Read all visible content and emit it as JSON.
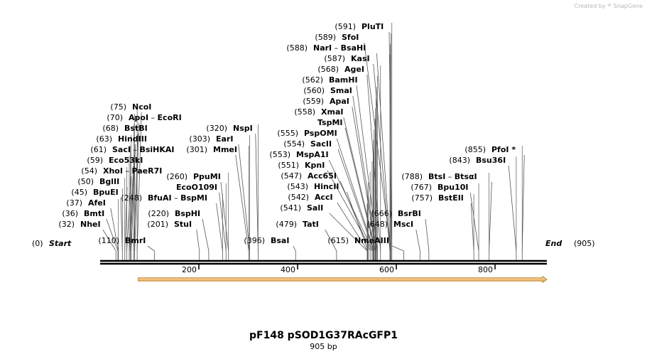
{
  "credit": {
    "prefix": "Created by",
    "brand": "SnapGene"
  },
  "plasmid": {
    "name": "pF148 pSOD1G37RAcGFP1",
    "size_label": "905 bp",
    "length": 905
  },
  "colors": {
    "feature_fill": "#f3c079",
    "feature_stroke": "#b07a1e",
    "line": "#000000",
    "leader": "#555555"
  },
  "axis_ticks": [
    200,
    400,
    600,
    800
  ],
  "ends": {
    "start": {
      "pos": "(0)",
      "name": "Start"
    },
    "end": {
      "pos": "(905)",
      "name": "End"
    }
  },
  "feature": {
    "start": 77,
    "end": 905,
    "direction": "forward"
  },
  "sites": [
    {
      "side": "L",
      "pos": "(32)",
      "names": [
        "NheI"
      ],
      "at": 32,
      "cut": 32
    },
    {
      "side": "L",
      "pos": "(36)",
      "names": [
        "BmtI"
      ],
      "at": 36,
      "cut": 36
    },
    {
      "side": "L",
      "pos": "(37)",
      "names": [
        "AfeI"
      ],
      "at": 37,
      "cut": 37
    },
    {
      "side": "L",
      "pos": "(45)",
      "names": [
        "BpuEI"
      ],
      "at": 45,
      "cut": 45
    },
    {
      "side": "L",
      "pos": "(50)",
      "names": [
        "BglII"
      ],
      "at": 50,
      "cut": 50
    },
    {
      "side": "L",
      "pos": "(54)",
      "names": [
        "XhoI",
        "PaeR7I"
      ],
      "at": 54,
      "cut": 54
    },
    {
      "side": "L",
      "pos": "(59)",
      "names": [
        "Eco53kI"
      ],
      "at": 59,
      "cut": 59
    },
    {
      "side": "L",
      "pos": "(61)",
      "names": [
        "SacI",
        "BsiHKAI"
      ],
      "at": 61,
      "cut": 61
    },
    {
      "side": "L",
      "pos": "(63)",
      "names": [
        "HindIII"
      ],
      "at": 63,
      "cut": 63
    },
    {
      "side": "L",
      "pos": "(68)",
      "names": [
        "BstBI"
      ],
      "at": 68,
      "cut": 68
    },
    {
      "side": "L",
      "pos": "(70)",
      "names": [
        "ApoI",
        "EcoRI"
      ],
      "at": 70,
      "cut": 70
    },
    {
      "side": "L",
      "pos": "(75)",
      "names": [
        "NcoI"
      ],
      "at": 75,
      "cut": 75
    },
    {
      "side": "L",
      "pos": "(110)",
      "names": [
        "BmrI"
      ],
      "at": 110,
      "cut": 110
    },
    {
      "side": "L",
      "pos": "(201)",
      "names": [
        "StuI"
      ],
      "at": 201,
      "cut": 201
    },
    {
      "side": "L",
      "pos": "(220)",
      "names": [
        "BspHI"
      ],
      "at": 220,
      "cut": 220
    },
    {
      "side": "L",
      "pos": "(248)",
      "names": [
        "BfuAI",
        "BspMI"
      ],
      "at": 248,
      "cut": 248
    },
    {
      "side": "L",
      "pos": "",
      "names": [
        "EcoO109I"
      ],
      "at": 255,
      "cut": 255
    },
    {
      "side": "L",
      "pos": "(260)",
      "names": [
        "PpuMI"
      ],
      "at": 260,
      "cut": 260
    },
    {
      "side": "L",
      "pos": "(301)",
      "names": [
        "MmeI"
      ],
      "at": 301,
      "cut": 301
    },
    {
      "side": "L",
      "pos": "(303)",
      "names": [
        "EarI"
      ],
      "at": 303,
      "cut": 303
    },
    {
      "side": "L",
      "pos": "(320)",
      "names": [
        "NspI"
      ],
      "at": 320,
      "cut": 320
    },
    {
      "side": "L",
      "pos": "(396)",
      "names": [
        "BsaI"
      ],
      "at": 396,
      "cut": 396
    },
    {
      "side": "L",
      "pos": "(479)",
      "names": [
        "TatI"
      ],
      "at": 479,
      "cut": 479
    },
    {
      "side": "L",
      "pos": "(541)",
      "names": [
        "SalI"
      ],
      "at": 541,
      "cut": 541
    },
    {
      "side": "L",
      "pos": "(542)",
      "names": [
        "AccI"
      ],
      "at": 542,
      "cut": 542
    },
    {
      "side": "L",
      "pos": "(543)",
      "names": [
        "HincII"
      ],
      "at": 543,
      "cut": 543
    },
    {
      "side": "L",
      "pos": "(547)",
      "names": [
        "Acc65I"
      ],
      "at": 547,
      "cut": 547
    },
    {
      "side": "L",
      "pos": "(551)",
      "names": [
        "KpnI"
      ],
      "at": 551,
      "cut": 551
    },
    {
      "side": "L",
      "pos": "(553)",
      "names": [
        "MspA1I"
      ],
      "at": 553,
      "cut": 553
    },
    {
      "side": "L",
      "pos": "(554)",
      "names": [
        "SacII"
      ],
      "at": 554,
      "cut": 554
    },
    {
      "side": "L",
      "pos": "(555)",
      "names": [
        "PspOMI"
      ],
      "at": 555,
      "cut": 555
    },
    {
      "side": "L",
      "pos": "",
      "names": [
        "TspMI"
      ],
      "at": 557,
      "cut": 557
    },
    {
      "side": "L",
      "pos": "(558)",
      "names": [
        "XmaI"
      ],
      "at": 558,
      "cut": 558
    },
    {
      "side": "L",
      "pos": "(559)",
      "names": [
        "ApaI"
      ],
      "at": 559,
      "cut": 559
    },
    {
      "side": "L",
      "pos": "(560)",
      "names": [
        "SmaI"
      ],
      "at": 560,
      "cut": 560
    },
    {
      "side": "L",
      "pos": "(562)",
      "names": [
        "BamHI"
      ],
      "at": 562,
      "cut": 562
    },
    {
      "side": "L",
      "pos": "(568)",
      "names": [
        "AgeI"
      ],
      "at": 568,
      "cut": 568
    },
    {
      "side": "L",
      "pos": "(587)",
      "names": [
        "KasI"
      ],
      "at": 587,
      "cut": 587
    },
    {
      "side": "L",
      "pos": "(588)",
      "names": [
        "NarI",
        "BsaHI"
      ],
      "at": 588,
      "cut": 588
    },
    {
      "side": "L",
      "pos": "(589)",
      "names": [
        "SfoI"
      ],
      "at": 589,
      "cut": 589
    },
    {
      "side": "L",
      "pos": "(591)",
      "names": [
        "PluTI"
      ],
      "at": 591,
      "cut": 591
    },
    {
      "side": "L",
      "pos": "(615)",
      "names": [
        "NmeAIII"
      ],
      "at": 615,
      "cut": 615
    },
    {
      "side": "L",
      "pos": "(648)",
      "names": [
        "MscI"
      ],
      "at": 648,
      "cut": 648
    },
    {
      "side": "L",
      "pos": "(666)",
      "names": [
        "BsrBI"
      ],
      "at": 666,
      "cut": 666
    },
    {
      "side": "L",
      "pos": "(757)",
      "names": [
        "BstEII"
      ],
      "at": 757,
      "cut": 757
    },
    {
      "side": "L",
      "pos": "(767)",
      "names": [
        "Bpu10I"
      ],
      "at": 767,
      "cut": 767
    },
    {
      "side": "L",
      "pos": "(788)",
      "names": [
        "BtsI",
        "BtsαI"
      ],
      "at": 788,
      "cut": 788
    },
    {
      "side": "L",
      "pos": "(843)",
      "names": [
        "Bsu36I"
      ],
      "at": 843,
      "cut": 843
    },
    {
      "side": "L",
      "pos": "(855)",
      "names": [
        "PfoI *"
      ],
      "at": 855,
      "cut": 855
    }
  ]
}
